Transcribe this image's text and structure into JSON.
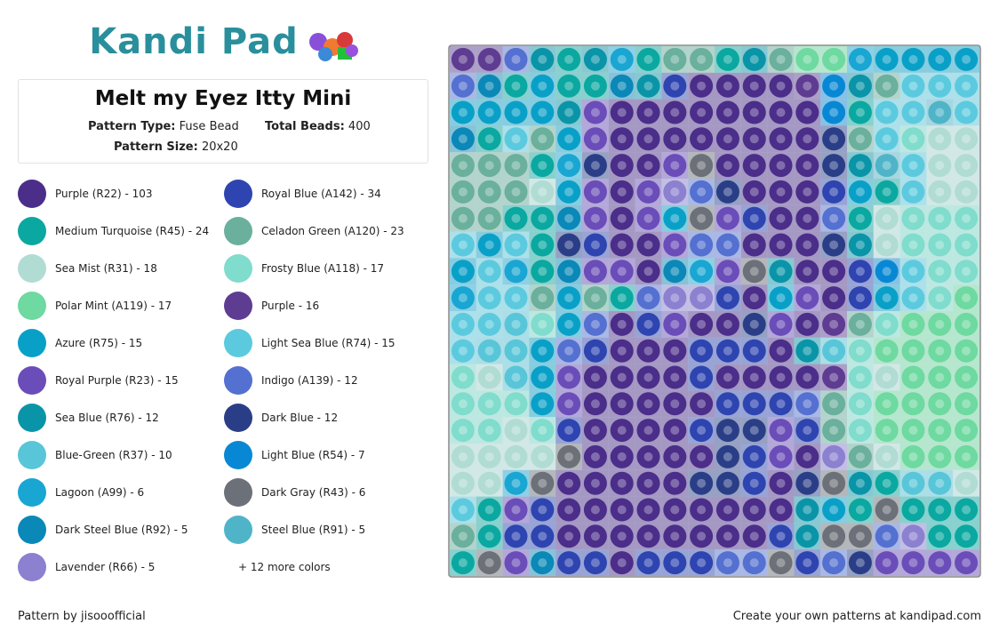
{
  "header": {
    "logo": "Kandi Pad"
  },
  "pattern": {
    "title": "Melt my Eyez Itty Mini",
    "type_label": "Pattern Type:",
    "type": "Fuse Bead",
    "beads_label": "Total Beads:",
    "beads": 400,
    "size_label": "Pattern Size:",
    "size": "20x20"
  },
  "colors": [
    {
      "label": "Purple (R22) - 103",
      "color": "#4b2d8a"
    },
    {
      "label": "Royal Blue (A142) - 34",
      "color": "#2e44b0"
    },
    {
      "label": "Medium Turquoise (R45) - 24",
      "color": "#0aa8a0"
    },
    {
      "label": "Celadon Green (A120) - 23",
      "color": "#6ab09c"
    },
    {
      "label": "Sea Mist (R31) - 18",
      "color": "#b0dcd4"
    },
    {
      "label": "Frosty Blue (A118) - 17",
      "color": "#80dccc"
    },
    {
      "label": "Polar Mint (A119) - 17",
      "color": "#6ed9a0"
    },
    {
      "label": "Purple - 16",
      "color": "#5e3c92"
    },
    {
      "label": "Azure (R75) - 15",
      "color": "#09a0c8"
    },
    {
      "label": "Light Sea Blue (R74) - 15",
      "color": "#5ccade"
    },
    {
      "label": "Royal Purple (R23) - 15",
      "color": "#6a4db8"
    },
    {
      "label": "Indigo (A139) - 12",
      "color": "#5470d0"
    },
    {
      "label": "Sea Blue (R76) - 12",
      "color": "#0a94a8"
    },
    {
      "label": "Dark Blue - 12",
      "color": "#2a3e88"
    },
    {
      "label": "Blue-Green (R37) - 10",
      "color": "#58c6d8"
    },
    {
      "label": "Light Blue (R54) - 7",
      "color": "#0888d4"
    },
    {
      "label": "Lagoon (A99) - 6",
      "color": "#19a6d2"
    },
    {
      "label": "Dark Gray (R43) - 6",
      "color": "#6c7078"
    },
    {
      "label": "Dark Steel Blue (R92) - 5",
      "color": "#0a88b8"
    },
    {
      "label": "Steel Blue (R91) - 5",
      "color": "#50b4c8"
    },
    {
      "label": "Lavender (R66) - 5",
      "color": "#8c80d0"
    }
  ],
  "more_colors": "+ 12 more colors",
  "footer": {
    "author": "Pattern by jisooofficial",
    "promo": "Create your own patterns at kandipad.com"
  }
}
